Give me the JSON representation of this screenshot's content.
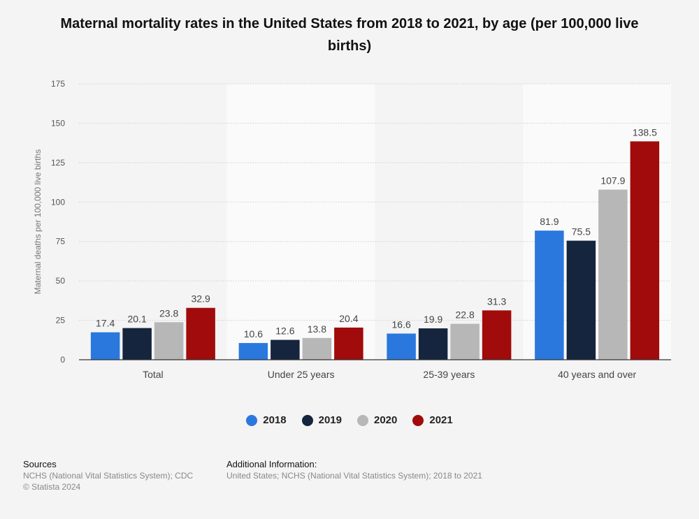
{
  "chart_data": {
    "type": "bar",
    "title": "Maternal mortality rates in the United States from 2018 to 2021, by age (per 100,000 live births)",
    "xlabel": "",
    "ylabel": "Maternal deaths per 100,000 live births",
    "ylim": [
      0,
      175
    ],
    "yticks": [
      0,
      25,
      50,
      75,
      100,
      125,
      150,
      175
    ],
    "categories": [
      "Total",
      "Under 25 years",
      "25-39 years",
      "40 years and over"
    ],
    "series": [
      {
        "name": "2018",
        "color": "#2a78dd",
        "values": [
          17.4,
          10.6,
          16.6,
          81.9
        ]
      },
      {
        "name": "2019",
        "color": "#14253d",
        "values": [
          20.1,
          12.6,
          19.9,
          75.5
        ]
      },
      {
        "name": "2020",
        "color": "#b7b7b7",
        "values": [
          23.8,
          13.8,
          22.8,
          107.9
        ]
      },
      {
        "name": "2021",
        "color": "#a10b0b",
        "values": [
          32.9,
          20.4,
          31.3,
          138.5
        ]
      }
    ],
    "legend_position": "bottom",
    "grid": true
  },
  "footer": {
    "sources_title": "Sources",
    "sources_line1": "NCHS (National Vital Statistics System); CDC",
    "sources_line2": "© Statista 2024",
    "additional_title": "Additional Information:",
    "additional_text": "United States; NCHS (National Vital Statistics System); 2018 to 2021"
  }
}
